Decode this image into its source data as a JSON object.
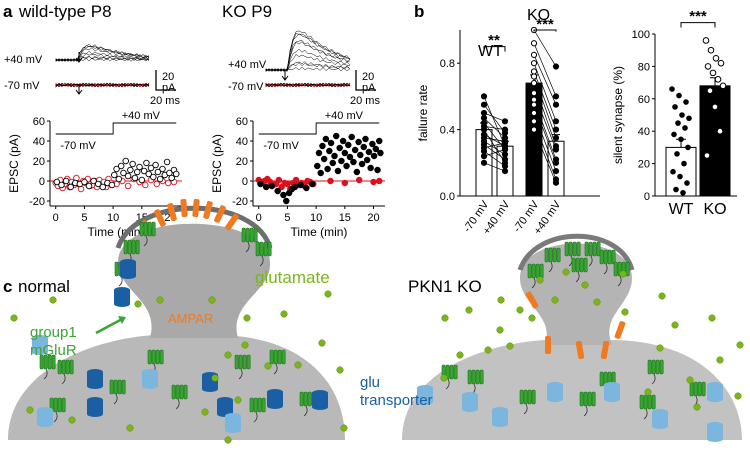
{
  "panel_a": {
    "letter": "a",
    "title_wt": "wild-type P8",
    "title_ko": "KO P9",
    "trace_pos": "+40 mV",
    "trace_neg": "-70 mV",
    "scale_y": "20",
    "scale_y_unit": "pA",
    "scale_x": "20 ms",
    "step_high": "+40 mV",
    "step_low": "-70 mV",
    "ylabel": "EPSC (pA)",
    "xlabel": "Time (min)"
  },
  "panel_b": {
    "letter": "b",
    "wt_label": "WT",
    "ko_label": "KO"
  },
  "panel_c": {
    "letter": "c",
    "title_normal": "normal",
    "title_ko": "PKN1 KO",
    "glutamate": "glutamate",
    "group1_line1": "group1",
    "group1_line2": "mGluR",
    "ampar": "AMPAR",
    "glu_line1": "glu",
    "glu_line2": "transporter"
  },
  "colors": {
    "red": "#d9121e",
    "green": "#3aa535",
    "green_dark": "#1f6f1f",
    "blue": "#1a5fa3",
    "blue_light": "#7ab6dd",
    "orange": "#ef7a22",
    "gray": "#b9b9b9",
    "glu": "#7ab51d"
  },
  "chart_data": [
    {
      "type": "scatter",
      "title": "wild-type P8",
      "xlabel": "Time (min)",
      "ylabel": "EPSC (pA)",
      "xlim": [
        -1,
        22
      ],
      "ylim": [
        -25,
        60
      ],
      "xticks": [
        "0",
        "5",
        "10",
        "15",
        "20"
      ],
      "yticks": [
        "-20",
        "0",
        "20",
        "40",
        "60"
      ],
      "series": [
        {
          "name": "-70 mV",
          "color": "red",
          "open": true,
          "x": [
            0.0,
            0.4,
            0.8,
            1.2,
            1.6,
            2.0,
            2.4,
            2.8,
            3.2,
            3.6,
            4.0,
            4.4,
            4.8,
            5.2,
            5.6,
            6.0,
            6.4,
            6.8,
            7.2,
            7.6,
            8.0,
            8.4,
            8.8,
            9.2,
            9.6,
            10.6,
            11.6,
            12.6,
            13.6,
            14.6,
            15.6,
            16.6,
            17.6,
            18.6,
            19.6,
            20.6
          ],
          "y": [
            -2,
            -5,
            1,
            -7,
            -3,
            2,
            -6,
            -1,
            -4,
            3,
            -3,
            -8,
            0,
            -2,
            2,
            -5,
            -4,
            0,
            -6,
            1,
            -3,
            -1,
            -6,
            2,
            -2,
            -3,
            0,
            -5,
            2,
            -1,
            -4,
            1,
            -3,
            0,
            -2,
            -1
          ]
        },
        {
          "name": "-70 mV (black)",
          "color": "black",
          "open": true,
          "x": [
            0.2,
            1.0,
            1.8,
            2.6,
            3.4,
            4.2,
            5.0,
            5.8,
            6.6,
            7.4,
            8.2,
            9.0,
            9.8
          ],
          "y": [
            -1,
            -4,
            0,
            -6,
            -2,
            -3,
            -1,
            -5,
            0,
            -3,
            -6,
            -2,
            -4
          ]
        },
        {
          "name": "+40 mV",
          "color": "black",
          "open": true,
          "x": [
            10.2,
            10.6,
            11.0,
            11.4,
            11.8,
            12.2,
            12.6,
            13.0,
            13.4,
            13.8,
            14.2,
            14.6,
            15.0,
            15.4,
            15.8,
            16.2,
            16.6,
            17.0,
            17.4,
            17.8,
            18.2,
            18.6,
            19.0,
            19.4,
            19.8,
            20.2,
            20.6,
            21.0
          ],
          "y": [
            6,
            12,
            2,
            15,
            8,
            20,
            5,
            11,
            17,
            3,
            9,
            14,
            1,
            10,
            18,
            7,
            13,
            4,
            16,
            9,
            2,
            12,
            6,
            19,
            8,
            3,
            11,
            7
          ]
        }
      ],
      "step": {
        "switch_at": 10,
        "low": "-70 mV",
        "high": "+40 mV"
      }
    },
    {
      "type": "scatter",
      "title": "KO P9",
      "xlabel": "Time (min)",
      "ylabel": "EPSC (pA)",
      "xlim": [
        -1,
        22
      ],
      "ylim": [
        -25,
        60
      ],
      "xticks": [
        "0",
        "5",
        "10",
        "15",
        "20"
      ],
      "yticks": [
        "-20",
        "0",
        "20",
        "40",
        "60"
      ],
      "series": [
        {
          "name": "-70 mV",
          "color": "red",
          "open": false,
          "x": [
            0.0,
            0.5,
            1.0,
            1.5,
            2.0,
            2.5,
            3.0,
            3.5,
            4.0,
            4.5,
            5.0,
            5.5,
            6.0,
            6.5,
            7.0,
            7.5,
            8.0,
            8.5,
            9.0,
            9.5,
            12.5,
            15.0,
            17.5,
            20.0,
            21.0
          ],
          "y": [
            1,
            -2,
            0,
            2,
            -1,
            -4,
            -3,
            1,
            -6,
            -2,
            -3,
            -8,
            -2,
            1,
            -4,
            -2,
            -5,
            0,
            -1,
            -3,
            0,
            -2,
            1,
            -1,
            0
          ]
        },
        {
          "name": "-70 mV (black)",
          "color": "black",
          "open": false,
          "x": [
            0.3,
            1.3,
            2.3,
            3.3,
            4.3,
            4.8,
            5.3,
            5.8,
            6.3,
            7.3,
            8.3,
            9.3
          ],
          "y": [
            -3,
            -6,
            -5,
            -10,
            -14,
            -20,
            -12,
            -8,
            -6,
            -4,
            -7,
            -3
          ]
        },
        {
          "name": "+40 mV",
          "color": "black",
          "open": false,
          "x": [
            10.2,
            10.5,
            10.8,
            11.1,
            11.4,
            11.7,
            12.0,
            12.3,
            12.6,
            12.9,
            13.2,
            13.5,
            13.8,
            14.1,
            14.4,
            14.7,
            15.0,
            15.3,
            15.6,
            15.9,
            16.2,
            16.5,
            16.8,
            17.1,
            17.4,
            17.7,
            18.0,
            18.3,
            18.6,
            18.9,
            19.2,
            19.5,
            19.8,
            20.1,
            20.4,
            20.7,
            21.0,
            21.2
          ],
          "y": [
            15,
            28,
            8,
            35,
            22,
            42,
            12,
            30,
            38,
            18,
            25,
            45,
            10,
            33,
            20,
            40,
            28,
            15,
            36,
            24,
            44,
            19,
            31,
            9,
            39,
            26,
            17,
            34,
            42,
            21,
            29,
            13,
            37,
            25,
            32,
            11,
            40,
            28
          ]
        }
      ],
      "step": {
        "switch_at": 10,
        "low": "-70 mV",
        "high": "+40 mV"
      }
    },
    {
      "type": "bar",
      "ylabel": "failure rate",
      "ylim": [
        0,
        1.0
      ],
      "yticks": [
        "0.0",
        "0.4",
        "0.8"
      ],
      "categories": [
        "-70 mV",
        "+40 mV",
        "-70 mV",
        "+40 mV"
      ],
      "groups": [
        "WT",
        "KO"
      ],
      "values": [
        0.4,
        0.3,
        0.68,
        0.33
      ],
      "errors": [
        0.04,
        0.03,
        0.05,
        0.04
      ],
      "significance": [
        "**",
        "***"
      ],
      "pairs": {
        "WT": [
          [
            0.6,
            0.3
          ],
          [
            0.55,
            0.38
          ],
          [
            0.5,
            0.45
          ],
          [
            0.47,
            0.35
          ],
          [
            0.44,
            0.28
          ],
          [
            0.42,
            0.4
          ],
          [
            0.4,
            0.2
          ],
          [
            0.37,
            0.3
          ],
          [
            0.35,
            0.33
          ],
          [
            0.33,
            0.25
          ],
          [
            0.31,
            0.22
          ],
          [
            0.29,
            0.32
          ],
          [
            0.27,
            0.18
          ],
          [
            0.24,
            0.28
          ],
          [
            0.2,
            0.15
          ]
        ],
        "KO": [
          [
            1.0,
            0.78
          ],
          [
            0.92,
            0.6
          ],
          [
            0.85,
            0.55
          ],
          [
            0.8,
            0.45
          ],
          [
            0.75,
            0.4
          ],
          [
            0.72,
            0.35
          ],
          [
            0.68,
            0.3
          ],
          [
            0.62,
            0.28
          ],
          [
            0.58,
            0.22
          ],
          [
            0.55,
            0.2
          ],
          [
            0.5,
            0.15
          ],
          [
            0.45,
            0.1
          ],
          [
            0.4,
            0.08
          ]
        ]
      }
    },
    {
      "type": "bar",
      "ylabel": "silent synapse (%)",
      "ylim": [
        0,
        100
      ],
      "yticks": [
        "0",
        "20",
        "40",
        "60",
        "80",
        "100"
      ],
      "categories": [
        "WT",
        "KO"
      ],
      "values": [
        30,
        68
      ],
      "errors": [
        5,
        5
      ],
      "significance": "***",
      "points": {
        "WT": [
          66,
          62,
          58,
          55,
          50,
          48,
          45,
          42,
          38,
          35,
          30,
          26,
          20,
          15,
          12,
          8,
          4,
          2
        ],
        "KO": [
          96,
          90,
          85,
          82,
          80,
          76,
          72,
          68,
          65,
          55,
          40,
          25
        ]
      }
    }
  ]
}
